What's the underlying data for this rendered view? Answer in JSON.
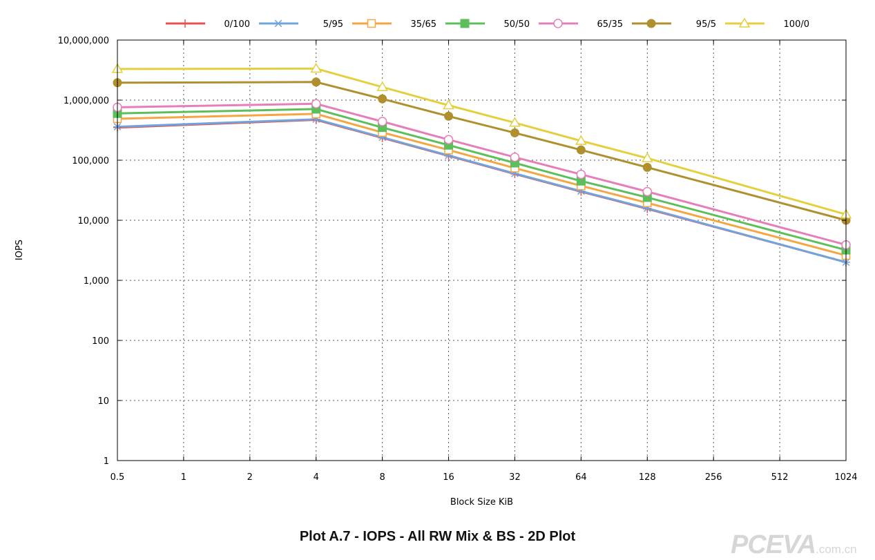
{
  "chart_data": {
    "type": "line",
    "xscale": "log2",
    "yscale": "log10",
    "xlabel": "Block Size KiB",
    "ylabel": "IOPS",
    "x": [
      0.5,
      1,
      2,
      4,
      8,
      16,
      32,
      64,
      128,
      256,
      512,
      1024
    ],
    "x_tick_labels": [
      "0.5",
      "1",
      "2",
      "4",
      "8",
      "16",
      "32",
      "64",
      "128",
      "256",
      "512",
      "1024"
    ],
    "ylim": [
      1,
      10000000
    ],
    "y_ticks": [
      1,
      10,
      100,
      1000,
      10000,
      100000,
      1000000,
      10000000
    ],
    "y_tick_labels": [
      "1",
      "10",
      "100",
      "1,000",
      "10,000",
      "100,000",
      "1,000,000",
      "10,000,000"
    ],
    "grid": true,
    "legend_position": "top",
    "series": [
      {
        "name": "0/100",
        "color": "#e8504f",
        "marker": "plus",
        "points": [
          [
            0.5,
            350000
          ],
          [
            4,
            470000
          ],
          [
            8,
            235000
          ],
          [
            16,
            118000
          ],
          [
            32,
            59000
          ],
          [
            64,
            30000
          ],
          [
            128,
            15500
          ],
          [
            1024,
            2000
          ]
        ]
      },
      {
        "name": "5/95",
        "color": "#6fa4dc",
        "marker": "asterisk",
        "points": [
          [
            0.5,
            360000
          ],
          [
            4,
            480000
          ],
          [
            8,
            240000
          ],
          [
            16,
            120000
          ],
          [
            32,
            60000
          ],
          [
            64,
            30500
          ],
          [
            128,
            15800
          ],
          [
            1024,
            2000
          ]
        ]
      },
      {
        "name": "35/65",
        "color": "#f5a642",
        "marker": "square-open",
        "points": [
          [
            0.5,
            490000
          ],
          [
            4,
            590000
          ],
          [
            8,
            290000
          ],
          [
            16,
            148000
          ],
          [
            32,
            74000
          ],
          [
            64,
            37500
          ],
          [
            128,
            19500
          ],
          [
            1024,
            2600
          ]
        ]
      },
      {
        "name": "50/50",
        "color": "#5cbf5c",
        "marker": "square-filled",
        "points": [
          [
            0.5,
            600000
          ],
          [
            4,
            710000
          ],
          [
            8,
            350000
          ],
          [
            16,
            178000
          ],
          [
            32,
            90000
          ],
          [
            64,
            45000
          ],
          [
            128,
            24000
          ],
          [
            1024,
            3200
          ]
        ]
      },
      {
        "name": "65/35",
        "color": "#e57fb9",
        "marker": "circle-open",
        "points": [
          [
            0.5,
            760000
          ],
          [
            4,
            870000
          ],
          [
            8,
            440000
          ],
          [
            16,
            220000
          ],
          [
            32,
            112000
          ],
          [
            64,
            58000
          ],
          [
            128,
            30000
          ],
          [
            1024,
            3900
          ]
        ]
      },
      {
        "name": "95/5",
        "color": "#b08f2e",
        "marker": "circle-filled",
        "points": [
          [
            0.5,
            1950000
          ],
          [
            4,
            2000000
          ],
          [
            8,
            1050000
          ],
          [
            16,
            540000
          ],
          [
            32,
            285000
          ],
          [
            64,
            148000
          ],
          [
            128,
            76000
          ],
          [
            1024,
            10000
          ]
        ]
      },
      {
        "name": "100/0",
        "color": "#e3cf3f",
        "marker": "triangle-open",
        "points": [
          [
            0.5,
            3300000
          ],
          [
            4,
            3350000
          ],
          [
            8,
            1650000
          ],
          [
            16,
            820000
          ],
          [
            32,
            420000
          ],
          [
            64,
            210000
          ],
          [
            128,
            108000
          ],
          [
            1024,
            12500
          ]
        ]
      }
    ]
  },
  "caption": "Plot A.7 - IOPS - All RW Mix & BS - 2D Plot",
  "watermark": {
    "main": "PCEVA",
    "sub": ".com.cn"
  }
}
